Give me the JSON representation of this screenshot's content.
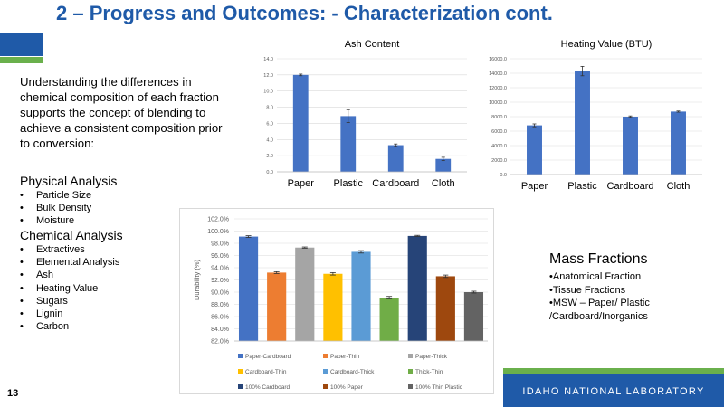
{
  "slide": {
    "title": "2 – Progress and Outcomes:  -  Characterization cont.",
    "page_number": "13",
    "intro": "Understanding the differences in chemical composition of each fraction supports the concept of blending to achieve a consistent composition prior to conversion:",
    "physical_heading": "Physical Analysis",
    "physical_items": [
      "Particle Size",
      "Bulk Density",
      "Moisture"
    ],
    "chemical_heading": "Chemical Analysis",
    "chemical_items": [
      "Extractives",
      "Elemental Analysis",
      "Ash",
      "Heating Value",
      "Sugars",
      "Lignin",
      "Carbon"
    ],
    "mass_title": "Mass Fractions",
    "mass_lines": [
      "•Anatomical Fraction",
      "•Tissue Fractions",
      "•MSW – Paper/ Plastic",
      "/Cardboard/Inorganics"
    ],
    "footer_org": "IDAHO NATIONAL LABORATORY"
  },
  "colors": {
    "brand_blue": "#1f5aa8",
    "brand_green": "#6ab04c",
    "bar_blue": "#4472c4"
  },
  "chart_data": [
    {
      "type": "bar",
      "title": "Ash Content",
      "categories": [
        "Paper",
        "Plastic",
        "Cardboard",
        "Cloth"
      ],
      "values": [
        12.0,
        6.9,
        3.3,
        1.6
      ],
      "errors": [
        0.1,
        0.8,
        0.15,
        0.2
      ],
      "ylim": [
        0,
        14
      ],
      "yticks": [
        "0.0",
        "2.0",
        "4.0",
        "6.0",
        "8.0",
        "10.0",
        "12.0",
        "14.0"
      ],
      "grid": true
    },
    {
      "type": "bar",
      "title": "Heating Value (BTU)",
      "categories": [
        "Paper",
        "Plastic",
        "Cardboard",
        "Cloth"
      ],
      "values": [
        6800,
        14300,
        8000,
        8700
      ],
      "errors": [
        200,
        650,
        100,
        80
      ],
      "ylim": [
        0,
        16000
      ],
      "yticks": [
        "0.0",
        "2000.0",
        "4000.0",
        "6000.0",
        "8000.0",
        "10000.0",
        "12000.0",
        "14000.0",
        "16000.0"
      ],
      "grid": true
    },
    {
      "type": "bar",
      "ylabel": "Durability (%)",
      "ylim": [
        82,
        102
      ],
      "yticks": [
        "82.0%",
        "84.0%",
        "86.0%",
        "88.0%",
        "90.0%",
        "92.0%",
        "94.0%",
        "96.0%",
        "98.0%",
        "100.0%",
        "102.0%"
      ],
      "grid": true,
      "legend_position": "bottom",
      "series": [
        {
          "name": "Paper-Cardboard",
          "value": 99.1,
          "error": 0.15,
          "color": "#4472c4"
        },
        {
          "name": "Paper-Thin",
          "value": 93.2,
          "error": 0.15,
          "color": "#ed7d31"
        },
        {
          "name": "Paper-Thick",
          "value": 97.3,
          "error": 0.1,
          "color": "#a5a5a5"
        },
        {
          "name": "Cardboard-Thin",
          "value": 93.0,
          "error": 0.2,
          "color": "#ffc000"
        },
        {
          "name": "Cardboard-Thick",
          "value": 96.6,
          "error": 0.2,
          "color": "#5b9bd5"
        },
        {
          "name": "Thick-Thin",
          "value": 89.1,
          "error": 0.2,
          "color": "#70ad47"
        },
        {
          "name": "100% Cardboard",
          "value": 99.2,
          "error": 0.1,
          "color": "#264478"
        },
        {
          "name": "100% Paper",
          "value": 92.6,
          "error": 0.2,
          "color": "#9e480e"
        },
        {
          "name": "100% Thin Plastic",
          "value": 90.0,
          "error": 0.15,
          "color": "#636363"
        }
      ]
    }
  ]
}
